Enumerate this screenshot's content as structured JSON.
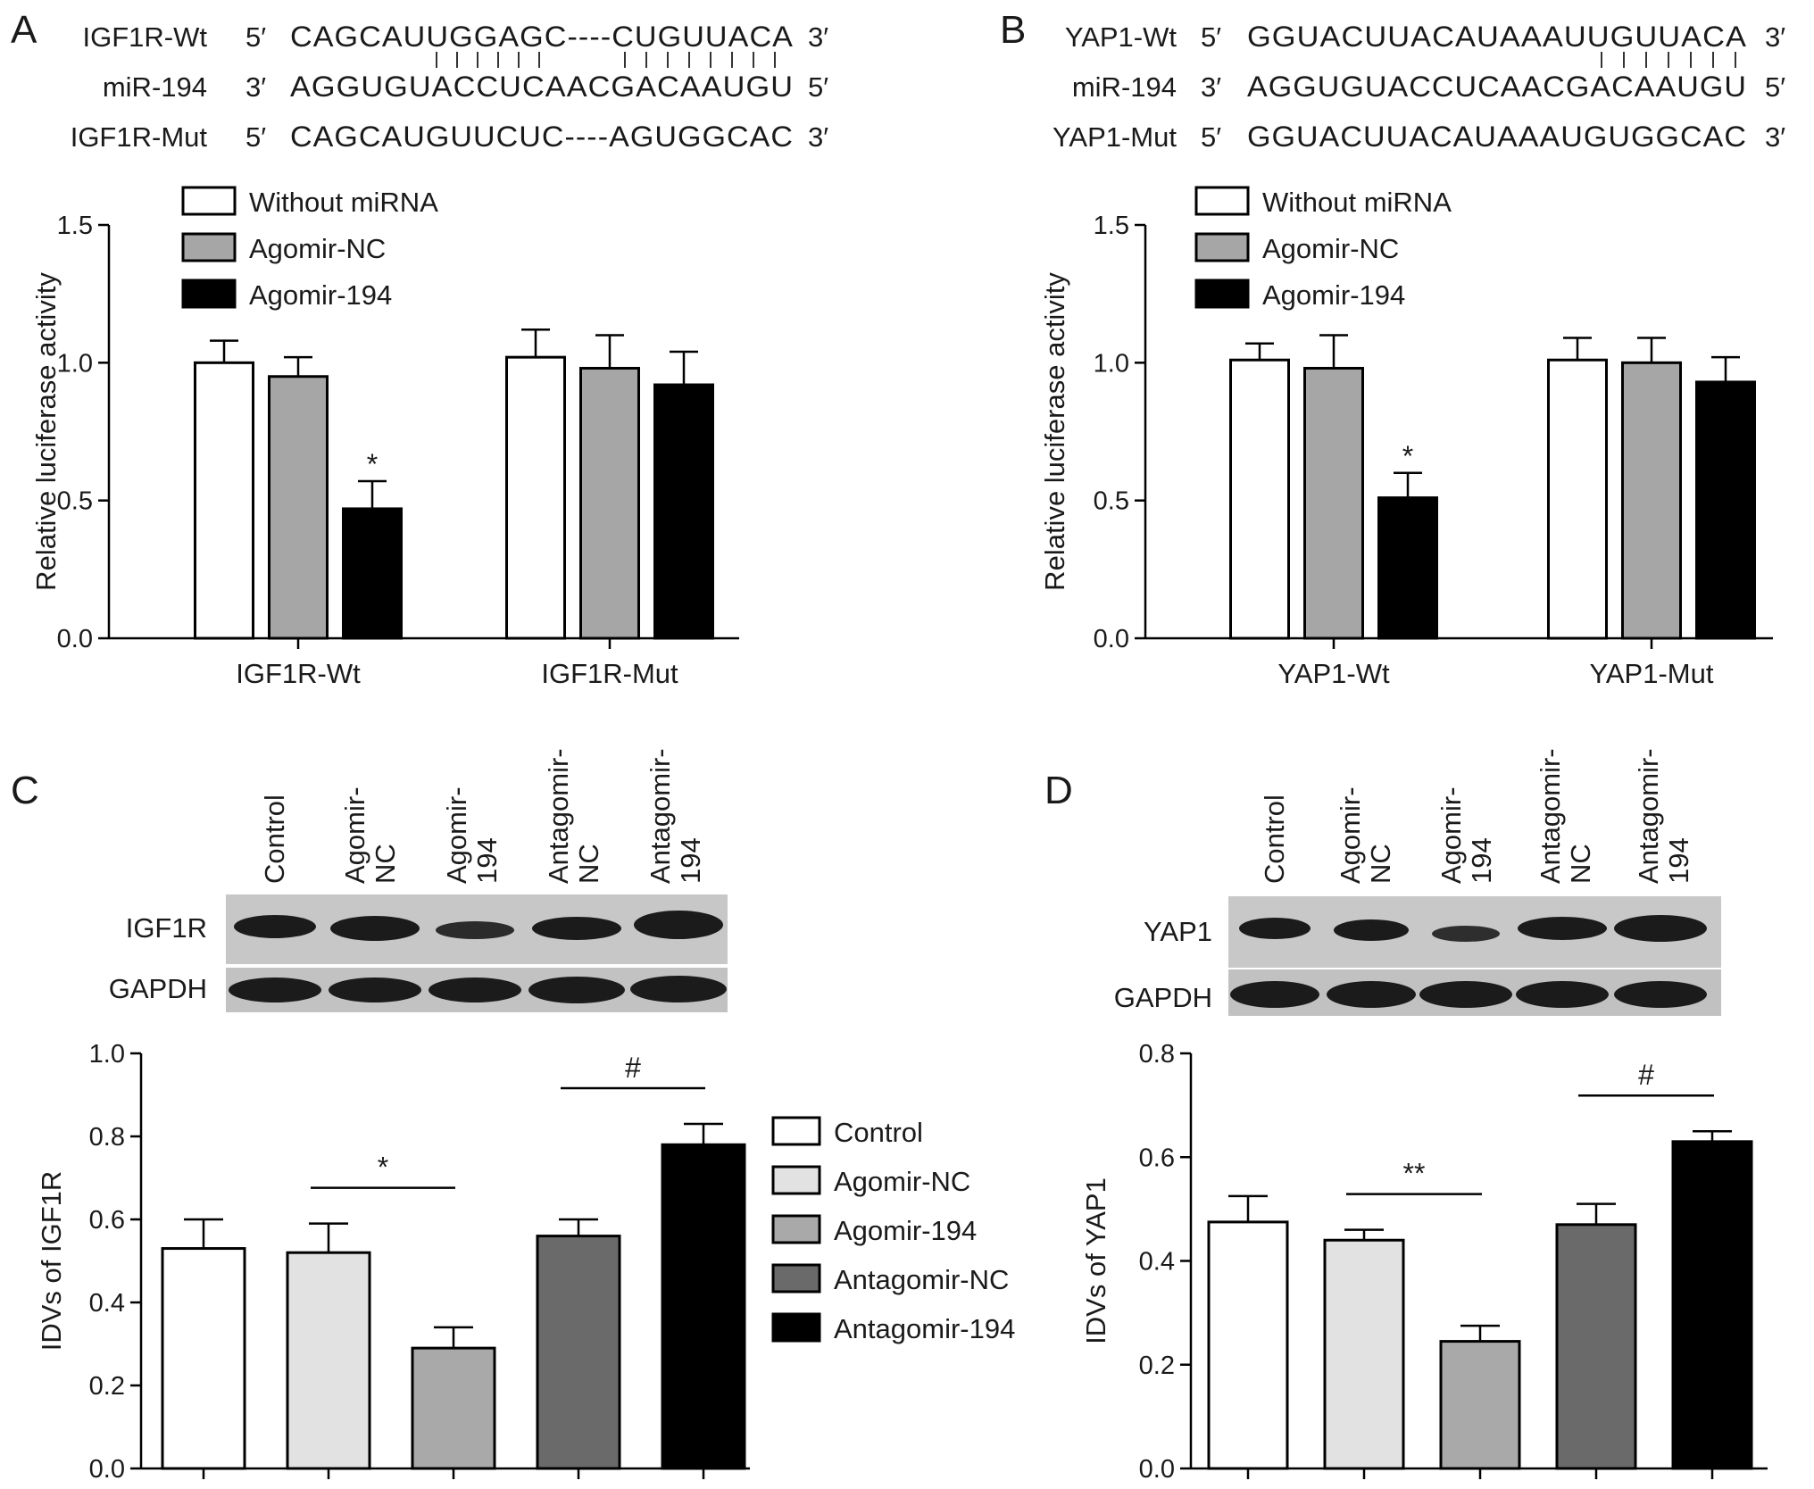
{
  "panels": {
    "A": {
      "letter": "A",
      "sequences": [
        {
          "name": "IGF1R-Wt",
          "left": "5′",
          "seq": "CAGCAUUGGAGC----CUGUUACA",
          "right": "3′"
        },
        {
          "name": "miR-194",
          "left": "3′",
          "seq": "AGGUGUACCUCAACGACAAUGU",
          "right": "5′"
        },
        {
          "name": "IGF1R-Mut",
          "left": "5′",
          "seq": "CAGCAUGUUCUC----AGUGGCAC",
          "right": "3′"
        }
      ]
    },
    "B": {
      "letter": "B",
      "sequences": [
        {
          "name": "YAP1-Wt",
          "left": "5′",
          "seq": "GGUACUUACAUAAAUUGUUACA",
          "right": "3′"
        },
        {
          "name": "miR-194",
          "left": "3′",
          "seq": "AGGUGUACCUCAACGACAAUGU",
          "right": "5′"
        },
        {
          "name": "YAP1-Mut",
          "left": "5′",
          "seq": "GGUACUUACAUAAAUGUGGCAC",
          "right": "3′"
        }
      ]
    },
    "C": {
      "letter": "C",
      "blot_lanes": [
        "Control",
        "Agomir-NC",
        "Agomir-194",
        "Antagomir-NC",
        "Antagomir-194"
      ],
      "blot_rows": [
        "IGF1R",
        "GAPDH"
      ]
    },
    "D": {
      "letter": "D",
      "blot_lanes": [
        "Control",
        "Agomir-NC",
        "Agomir-194",
        "Antagomir-NC",
        "Antagomir-194"
      ],
      "blot_rows": [
        "YAP1",
        "GAPDH"
      ]
    }
  },
  "chart_data": [
    {
      "id": "A",
      "type": "bar",
      "categories": [
        "IGF1R-Wt",
        "IGF1R-Mut"
      ],
      "series": [
        {
          "name": "Without miRNA",
          "color": "#ffffff",
          "values": [
            1.0,
            1.02
          ],
          "errors": [
            0.08,
            0.1
          ]
        },
        {
          "name": "Agomir-NC",
          "color": "#a6a6a6",
          "values": [
            0.95,
            0.98
          ],
          "errors": [
            0.07,
            0.12
          ]
        },
        {
          "name": "Agomir-194",
          "color": "#000000",
          "values": [
            0.47,
            0.92
          ],
          "errors": [
            0.1,
            0.12
          ]
        }
      ],
      "annotations": [
        {
          "category": 0,
          "series": 2,
          "text": "*"
        }
      ],
      "xlabel": "",
      "ylabel": "Relative luciferase activity",
      "ylim": [
        0,
        1.5
      ],
      "yticks": [
        "0.0",
        "0.5",
        "1.0",
        "1.5"
      ],
      "grid": false,
      "legend": "top-left"
    },
    {
      "id": "B",
      "type": "bar",
      "categories": [
        "YAP1-Wt",
        "YAP1-Mut"
      ],
      "series": [
        {
          "name": "Without miRNA",
          "color": "#ffffff",
          "values": [
            1.01,
            1.01
          ],
          "errors": [
            0.06,
            0.08
          ]
        },
        {
          "name": "Agomir-NC",
          "color": "#a6a6a6",
          "values": [
            0.98,
            1.0
          ],
          "errors": [
            0.12,
            0.09
          ]
        },
        {
          "name": "Agomir-194",
          "color": "#000000",
          "values": [
            0.51,
            0.93
          ],
          "errors": [
            0.09,
            0.09
          ]
        }
      ],
      "annotations": [
        {
          "category": 0,
          "series": 2,
          "text": "*"
        }
      ],
      "xlabel": "",
      "ylabel": "Relative luciferase activity",
      "ylim": [
        0,
        1.5
      ],
      "yticks": [
        "0.0",
        "0.5",
        "1.0",
        "1.5"
      ],
      "grid": false,
      "legend": "top-left"
    },
    {
      "id": "C",
      "type": "bar",
      "categories": [
        "Control",
        "Agomir-NC",
        "Agomir-194",
        "Antagomir-NC",
        "Antagomir-194"
      ],
      "values": [
        0.53,
        0.52,
        0.29,
        0.56,
        0.78
      ],
      "errors": [
        0.07,
        0.07,
        0.05,
        0.04,
        0.05
      ],
      "colors": [
        "#ffffff",
        "#e2e2e2",
        "#a9a9a9",
        "#6a6a6a",
        "#000000"
      ],
      "brackets": [
        {
          "from": 1,
          "to": 2,
          "text": "*"
        },
        {
          "from": 3,
          "to": 4,
          "text": "#"
        }
      ],
      "xlabel": "",
      "ylabel": "IDVs of IGF1R",
      "ylim": [
        0,
        1.0
      ],
      "yticks": [
        "0.0",
        "0.2",
        "0.4",
        "0.6",
        "0.8",
        "1.0"
      ],
      "grid": false,
      "legend": "right"
    },
    {
      "id": "D",
      "type": "bar",
      "categories": [
        "Control",
        "Agomir-NC",
        "Agomir-194",
        "Antagomir-NC",
        "Antagomir-194"
      ],
      "values": [
        0.475,
        0.44,
        0.245,
        0.47,
        0.63
      ],
      "errors": [
        0.05,
        0.02,
        0.03,
        0.04,
        0.02
      ],
      "colors": [
        "#ffffff",
        "#e2e2e2",
        "#a9a9a9",
        "#6a6a6a",
        "#000000"
      ],
      "brackets": [
        {
          "from": 1,
          "to": 2,
          "text": "**"
        },
        {
          "from": 3,
          "to": 4,
          "text": "#"
        }
      ],
      "xlabel": "",
      "ylabel": "IDVs of YAP1",
      "ylim": [
        0,
        0.8
      ],
      "yticks": [
        "0.0",
        "0.2",
        "0.4",
        "0.6",
        "0.8"
      ],
      "grid": false,
      "legend": "none"
    }
  ]
}
